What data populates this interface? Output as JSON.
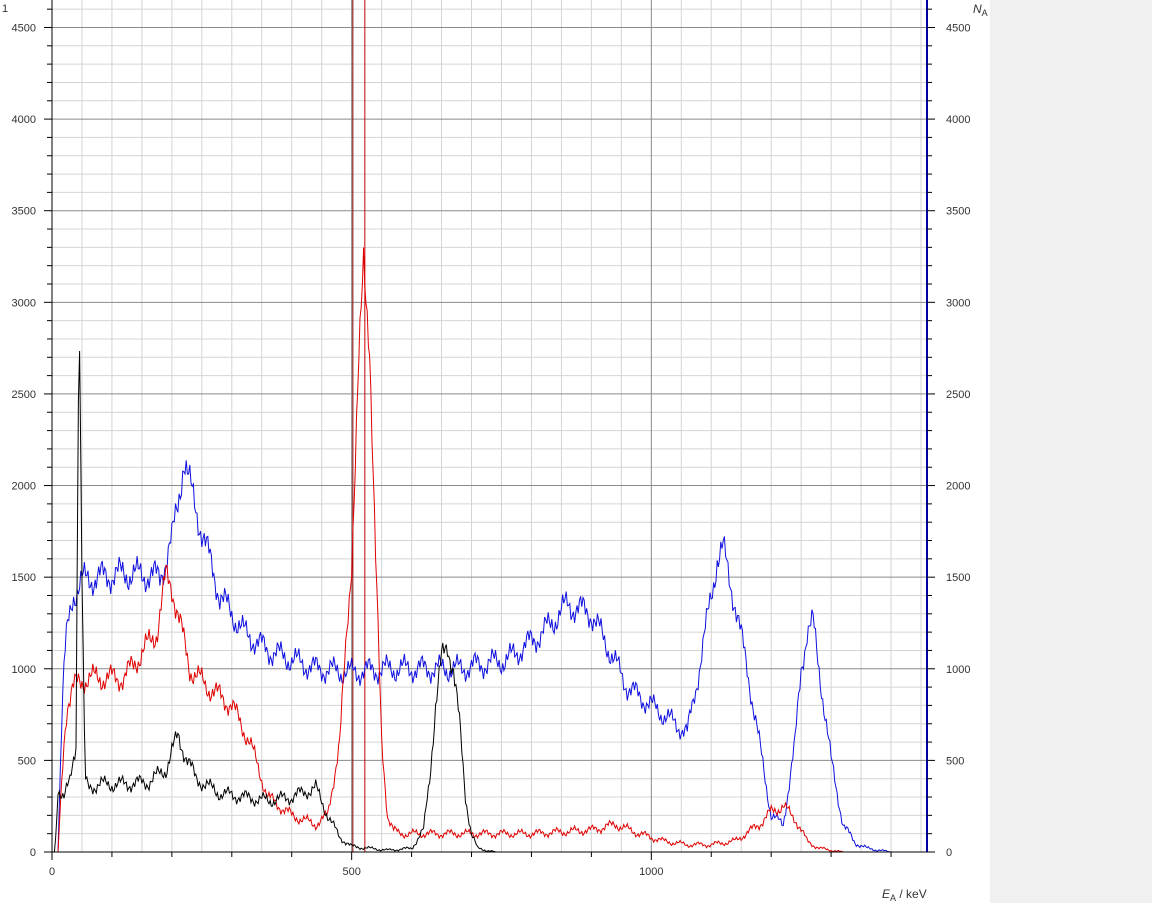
{
  "chart_data": {
    "type": "line",
    "title": "",
    "xlabel": {
      "var": "E",
      "sub": "A",
      "unit": " / keV"
    },
    "ylabel": {
      "var": "N",
      "sub": "A"
    },
    "corner_label": "1",
    "xlim": [
      0,
      1460
    ],
    "ylim": [
      0,
      4650
    ],
    "x_ticks": [
      0,
      500,
      1000
    ],
    "y_ticks": [
      0,
      500,
      1000,
      1500,
      2000,
      2500,
      3000,
      3500,
      4000,
      4500
    ],
    "grid": true,
    "marker_lines": [
      {
        "x": 502,
        "color": "#8b0000"
      },
      {
        "x": 522,
        "color": "#cc0000"
      }
    ],
    "series": [
      {
        "color": "#1010e0",
        "x": [
          0,
          10,
          15,
          20,
          25,
          35,
          50,
          80,
          120,
          160,
          180,
          200,
          210,
          220,
          230,
          250,
          280,
          320,
          360,
          400,
          440,
          500,
          560,
          620,
          680,
          760,
          820,
          860,
          900,
          930,
          960,
          1000,
          1040,
          1060,
          1080,
          1100,
          1110,
          1120,
          1140,
          1160,
          1180,
          1200,
          1220,
          1240,
          1250,
          1260,
          1270,
          1280,
          1300,
          1320,
          1340,
          1360,
          1400,
          1460
        ],
        "y": [
          0,
          0,
          600,
          1000,
          1200,
          1400,
          1480,
          1500,
          1520,
          1510,
          1500,
          1700,
          1900,
          2150,
          2000,
          1750,
          1400,
          1200,
          1100,
          1050,
          1000,
          980,
          1000,
          1000,
          1000,
          1050,
          1200,
          1350,
          1300,
          1100,
          900,
          800,
          700,
          650,
          1000,
          1400,
          1600,
          1650,
          1350,
          1000,
          600,
          200,
          150,
          600,
          1000,
          1200,
          1250,
          1000,
          500,
          150,
          50,
          20,
          0,
          0
        ]
      },
      {
        "color": "#e00000",
        "x": [
          0,
          10,
          15,
          20,
          25,
          35,
          60,
          120,
          175,
          190,
          200,
          210,
          230,
          260,
          300,
          330,
          360,
          400,
          440,
          460,
          480,
          500,
          510,
          520,
          530,
          540,
          550,
          560,
          570,
          580,
          600,
          650,
          700,
          800,
          900,
          940,
          980,
          1020,
          1060,
          1100,
          1140,
          1180,
          1200,
          1220,
          1240,
          1260,
          1280,
          1320,
          1460
        ],
        "y": [
          0,
          0,
          300,
          600,
          800,
          900,
          950,
          950,
          1200,
          1500,
          1450,
          1300,
          1000,
          900,
          800,
          600,
          300,
          200,
          150,
          200,
          600,
          1600,
          2500,
          3200,
          2800,
          1600,
          600,
          200,
          120,
          100,
          100,
          100,
          100,
          100,
          120,
          150,
          100,
          60,
          40,
          40,
          60,
          150,
          220,
          250,
          180,
          60,
          20,
          0,
          0
        ]
      },
      {
        "color": "#000000",
        "x": [
          0,
          5,
          10,
          20,
          30,
          40,
          45,
          50,
          55,
          60,
          80,
          120,
          160,
          190,
          200,
          210,
          220,
          240,
          280,
          320,
          360,
          400,
          440,
          460,
          480,
          500,
          560,
          600,
          620,
          630,
          640,
          650,
          660,
          670,
          680,
          690,
          700,
          710,
          740,
          1460
        ],
        "y": [
          0,
          0,
          350,
          300,
          380,
          600,
          3080,
          1500,
          400,
          350,
          370,
          370,
          380,
          450,
          550,
          630,
          550,
          400,
          320,
          300,
          280,
          300,
          350,
          200,
          80,
          30,
          10,
          20,
          120,
          400,
          800,
          1050,
          1130,
          1000,
          700,
          300,
          100,
          20,
          0,
          0
        ]
      }
    ]
  }
}
